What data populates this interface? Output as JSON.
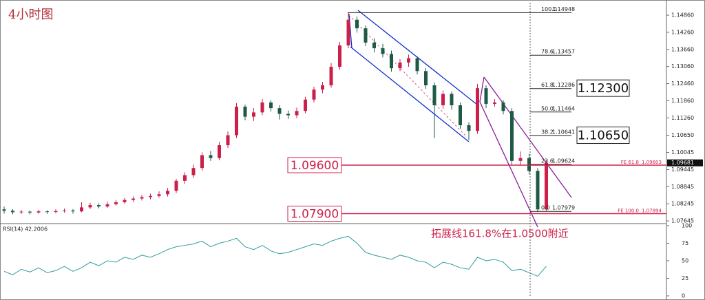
{
  "chart_data": {
    "type": "candlestick",
    "title": "4小时图",
    "up_color": "#cc1f4a",
    "down_color": "#1e5a46",
    "ylim": [
      1.0755,
      1.1532
    ],
    "yticks": [
      {
        "value": 1.1486,
        "label": "1.14860"
      },
      {
        "value": 1.1426,
        "label": "1.14260"
      },
      {
        "value": 1.1366,
        "label": "1.13660"
      },
      {
        "value": 1.1306,
        "label": "1.13060"
      },
      {
        "value": 1.1246,
        "label": "1.12460"
      },
      {
        "value": 1.1186,
        "label": "1.11860"
      },
      {
        "value": 1.1126,
        "label": "1.11260"
      },
      {
        "value": 1.1065,
        "label": "1.10650"
      },
      1.10045,
      1.09445,
      1.08845,
      1.08245,
      1.07645
    ],
    "candles": [
      [
        1.0805,
        1.0815,
        1.079,
        1.08
      ],
      [
        1.08,
        1.0806,
        1.0788,
        1.0795
      ],
      [
        1.0795,
        1.0803,
        1.0789,
        1.0797
      ],
      [
        1.0797,
        1.0801,
        1.0787,
        1.0794
      ],
      [
        1.0794,
        1.0804,
        1.079,
        1.0798
      ],
      [
        1.0798,
        1.0802,
        1.0789,
        1.0796
      ],
      [
        1.0796,
        1.0805,
        1.0791,
        1.0799
      ],
      [
        1.0799,
        1.0808,
        1.0793,
        1.0801
      ],
      [
        1.0801,
        1.0806,
        1.079,
        1.0798
      ],
      [
        1.0798,
        1.083,
        1.0795,
        1.0812
      ],
      [
        1.0812,
        1.0828,
        1.0806,
        1.082
      ],
      [
        1.082,
        1.0826,
        1.0808,
        1.0815
      ],
      [
        1.0815,
        1.0832,
        1.081,
        1.0823
      ],
      [
        1.0823,
        1.0838,
        1.0818,
        1.083
      ],
      [
        1.083,
        1.0845,
        1.0825,
        1.0838
      ],
      [
        1.0838,
        1.085,
        1.0831,
        1.0843
      ],
      [
        1.0843,
        1.0855,
        1.0836,
        1.0848
      ],
      [
        1.0848,
        1.086,
        1.084,
        1.0852
      ],
      [
        1.0852,
        1.0868,
        1.0846,
        1.0858
      ],
      [
        1.0858,
        1.088,
        1.085,
        1.087
      ],
      [
        1.087,
        1.0912,
        1.0862,
        1.0905
      ],
      [
        1.0905,
        1.0935,
        1.0895,
        1.0925
      ],
      [
        1.0925,
        1.0962,
        1.0915,
        1.095
      ],
      [
        1.095,
        1.1005,
        1.094,
        1.0995
      ],
      [
        1.0995,
        1.101,
        1.0975,
        1.0985
      ],
      [
        1.0985,
        1.1042,
        1.0978,
        1.103
      ],
      [
        1.103,
        1.1078,
        1.102,
        1.1065
      ],
      [
        1.1065,
        1.1178,
        1.1055,
        1.1165
      ],
      [
        1.1165,
        1.1172,
        1.1118,
        1.113
      ],
      [
        1.113,
        1.116,
        1.1115,
        1.1145
      ],
      [
        1.1145,
        1.1192,
        1.1135,
        1.118
      ],
      [
        1.118,
        1.1188,
        1.1148,
        1.116
      ],
      [
        1.116,
        1.117,
        1.112,
        1.114
      ],
      [
        1.114,
        1.1152,
        1.1122,
        1.1135
      ],
      [
        1.1135,
        1.1162,
        1.1125,
        1.115
      ],
      [
        1.115,
        1.12,
        1.1142,
        1.119
      ],
      [
        1.119,
        1.1235,
        1.118,
        1.1225
      ],
      [
        1.1225,
        1.1252,
        1.1212,
        1.124
      ],
      [
        1.124,
        1.1318,
        1.1232,
        1.1305
      ],
      [
        1.1305,
        1.1392,
        1.1295,
        1.138
      ],
      [
        1.138,
        1.1495,
        1.137,
        1.147
      ],
      [
        1.147,
        1.1482,
        1.1425,
        1.144
      ],
      [
        1.144,
        1.145,
        1.1378,
        1.139
      ],
      [
        1.139,
        1.1405,
        1.1355,
        1.137
      ],
      [
        1.137,
        1.1385,
        1.1338,
        1.135
      ],
      [
        1.135,
        1.1362,
        1.1288,
        1.13
      ],
      [
        1.13,
        1.1332,
        1.129,
        1.132
      ],
      [
        1.132,
        1.1348,
        1.1305,
        1.1335
      ],
      [
        1.1335,
        1.1342,
        1.1278,
        1.129
      ],
      [
        1.129,
        1.13,
        1.1228,
        1.124
      ],
      [
        1.124,
        1.125,
        1.1055,
        1.117
      ],
      [
        1.117,
        1.1222,
        1.1158,
        1.121
      ],
      [
        1.121,
        1.1218,
        1.1155,
        1.117
      ],
      [
        1.117,
        1.118,
        1.1088,
        1.11
      ],
      [
        1.11,
        1.111,
        1.1048,
        1.108
      ],
      [
        1.108,
        1.1245,
        1.107,
        1.123
      ],
      [
        1.123,
        1.124,
        1.116,
        1.1175
      ],
      [
        1.1175,
        1.1192,
        1.1165,
        1.118
      ],
      [
        1.118,
        1.1188,
        1.1138,
        1.115
      ],
      [
        1.115,
        1.116,
        1.0962,
        1.0975
      ],
      [
        1.0975,
        1.1008,
        1.096,
        1.0985
      ],
      [
        1.0985,
        1.1,
        1.0928,
        1.094
      ],
      [
        1.094,
        1.095,
        1.0795,
        1.0805
      ],
      [
        1.0805,
        1.0975,
        1.08,
        1.0968
      ]
    ],
    "current_price": {
      "value": 1.09681,
      "label": "1.09681"
    },
    "fib": [
      {
        "level": "100.0",
        "value": 1.14948
      },
      {
        "level": "78.6",
        "value": 1.13457
      },
      {
        "level": "61.8",
        "value": 1.12286
      },
      {
        "level": "50.0",
        "value": 1.11464
      },
      {
        "level": "38.2",
        "value": 1.10641
      },
      {
        "level": "23.6",
        "value": 1.09624
      },
      {
        "level": "0.0",
        "value": 1.07979
      }
    ],
    "fe": [
      {
        "level": "FE 61.8",
        "value": 1.09603
      },
      {
        "level": "FE 100.0",
        "value": 1.07894
      }
    ],
    "levels": [
      {
        "value": 1.096,
        "label": "1.09600"
      },
      {
        "value": 1.079,
        "label": "1.07900"
      }
    ],
    "markers": [
      {
        "value": 1.123,
        "label": "1.12300"
      },
      {
        "value": 1.1065,
        "label": "1.10650"
      }
    ],
    "annotation": "拓展线161.8%在1.0500附近",
    "rsi": {
      "title": "RSI(14) 42.2006",
      "color": "#2f9c9c",
      "ylim": [
        0,
        100
      ],
      "yticks": [
        100,
        75,
        50,
        25,
        0
      ],
      "values": [
        35,
        30,
        38,
        34,
        40,
        33,
        36,
        42,
        35,
        40,
        48,
        43,
        50,
        48,
        55,
        52,
        58,
        55,
        60,
        66,
        70,
        72,
        74,
        78,
        70,
        75,
        78,
        82,
        70,
        66,
        72,
        64,
        60,
        62,
        66,
        70,
        74,
        72,
        78,
        82,
        85,
        75,
        62,
        58,
        55,
        52,
        58,
        55,
        50,
        48,
        40,
        48,
        45,
        40,
        38,
        55,
        50,
        52,
        48,
        36,
        38,
        33,
        28,
        42.2
      ]
    }
  }
}
